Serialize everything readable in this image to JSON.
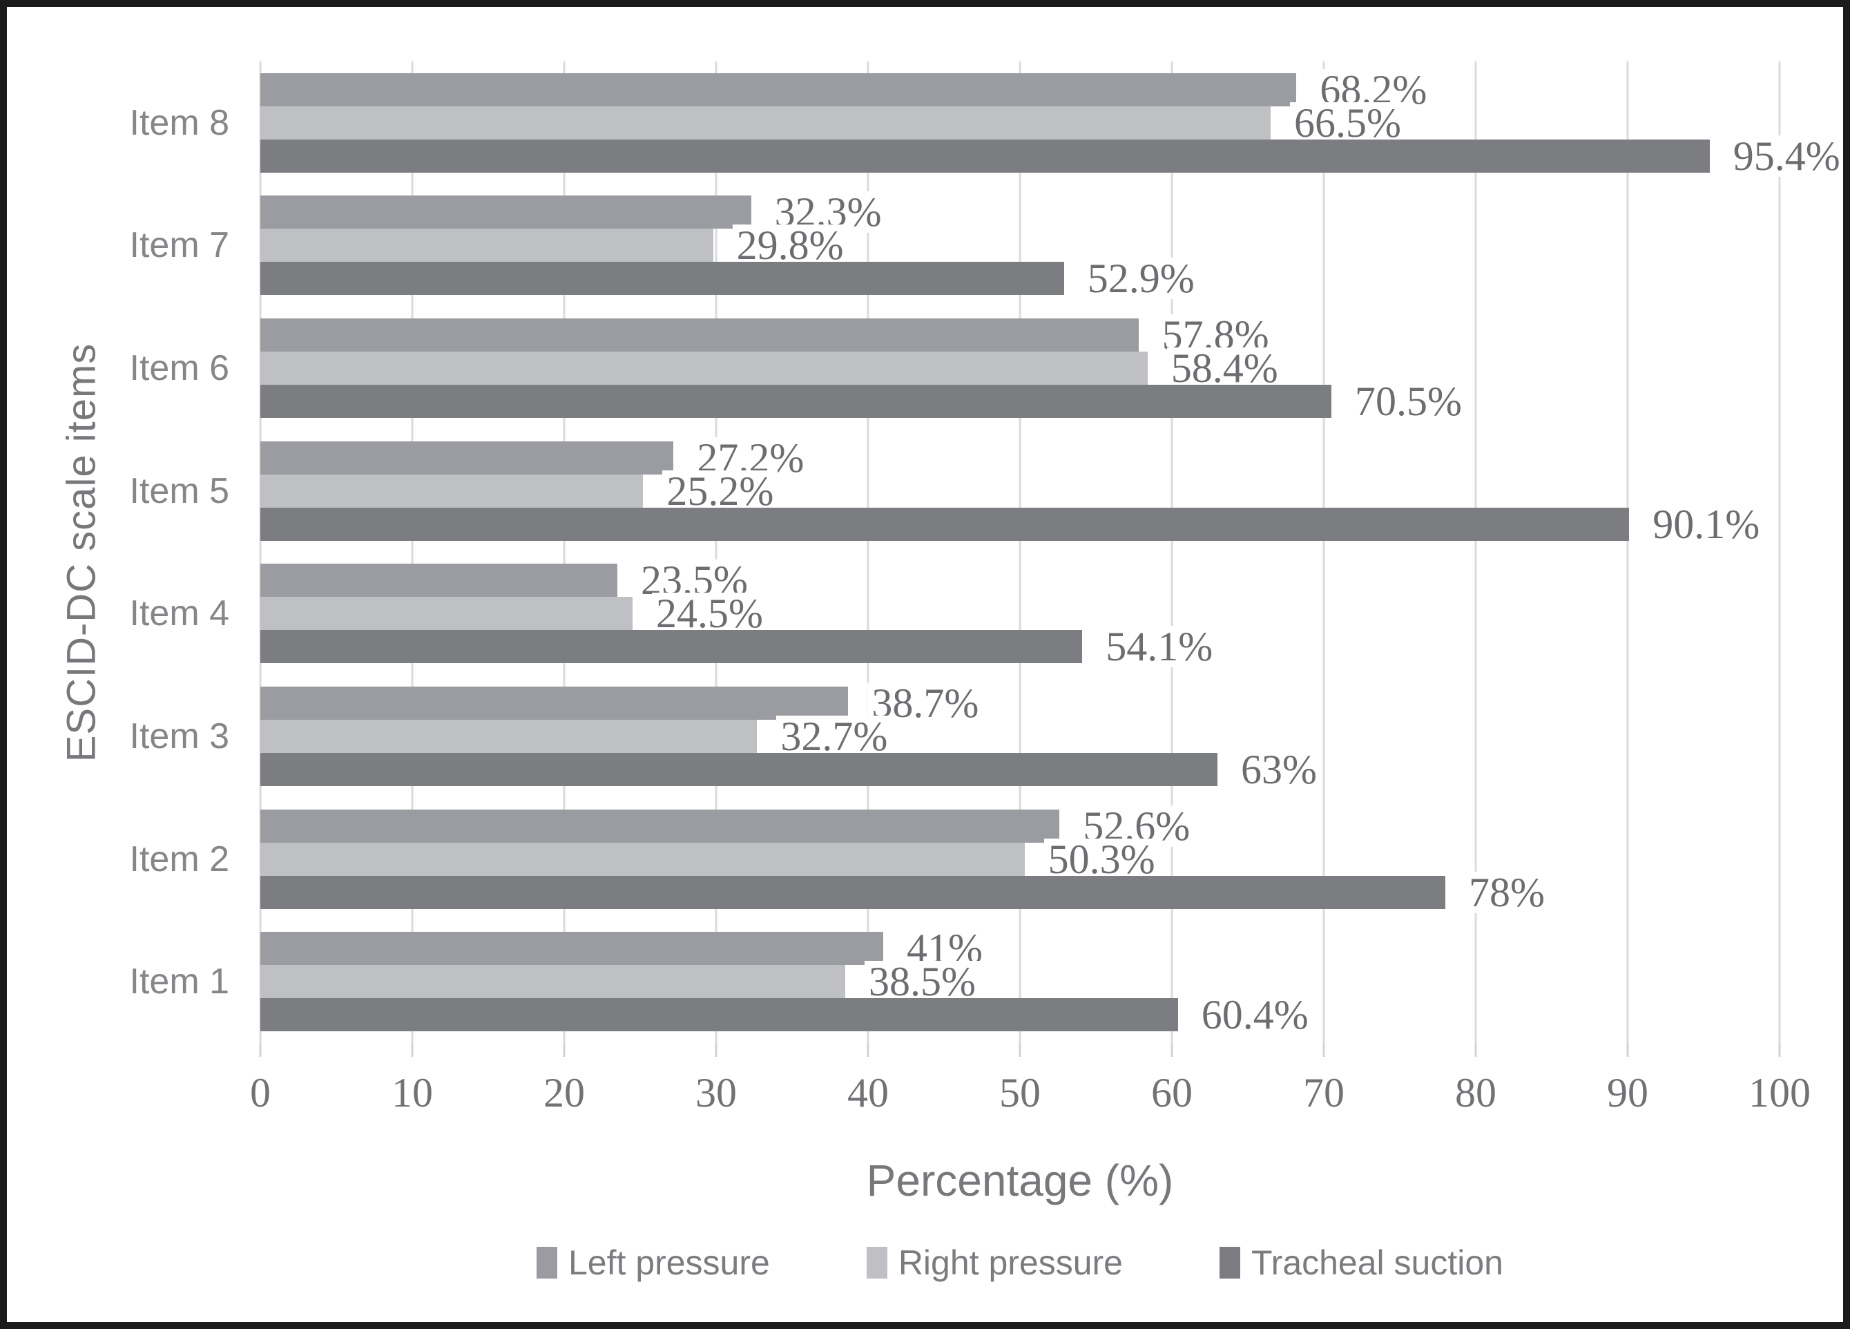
{
  "chart_data": {
    "type": "bar",
    "orientation": "horizontal",
    "title": "",
    "xlabel": "Percentage (%)",
    "ylabel": "ESCID-DC scale items",
    "xlim": [
      0,
      100
    ],
    "xticks": [
      0,
      10,
      20,
      30,
      40,
      50,
      60,
      70,
      80,
      90,
      100
    ],
    "grid": "vertical",
    "legend_position": "bottom",
    "categories": [
      "Item 8",
      "Item 7",
      "Item 6",
      "Item 5",
      "Item 4",
      "Item 3",
      "Item 2",
      "Item 1"
    ],
    "series": [
      {
        "name": "Left pressure",
        "color": "#9b9ca1",
        "values": [
          68.2,
          32.3,
          57.8,
          27.2,
          23.5,
          38.7,
          52.6,
          41
        ],
        "labels": [
          "68.2%",
          "32.3%",
          "57.8%",
          "27.2%",
          "23.5%",
          "38.7%",
          "52.6%",
          "41%"
        ]
      },
      {
        "name": "Right pressure",
        "color": "#bec0c3",
        "values": [
          66.5,
          29.8,
          58.4,
          25.2,
          24.5,
          32.7,
          50.3,
          38.5
        ],
        "labels": [
          "66.5%",
          "29.8%",
          "58.4%",
          "25.2%",
          "24.5%",
          "32.7%",
          "50.3%",
          "38.5%"
        ]
      },
      {
        "name": "Tracheal suction",
        "color": "#7b7d80",
        "values": [
          95.4,
          52.9,
          70.5,
          90.1,
          54.1,
          63,
          78,
          60.4
        ],
        "labels": [
          "95.4%",
          "52.9%",
          "70.5%",
          "90.1%",
          "54.1%",
          "63%",
          "78%",
          "60.4%"
        ]
      }
    ],
    "colors": {
      "gridline": "#dadbdd",
      "axis_text": "#717276",
      "label_text": "#6c6d71",
      "frame_border": "#1b1b1b"
    }
  }
}
